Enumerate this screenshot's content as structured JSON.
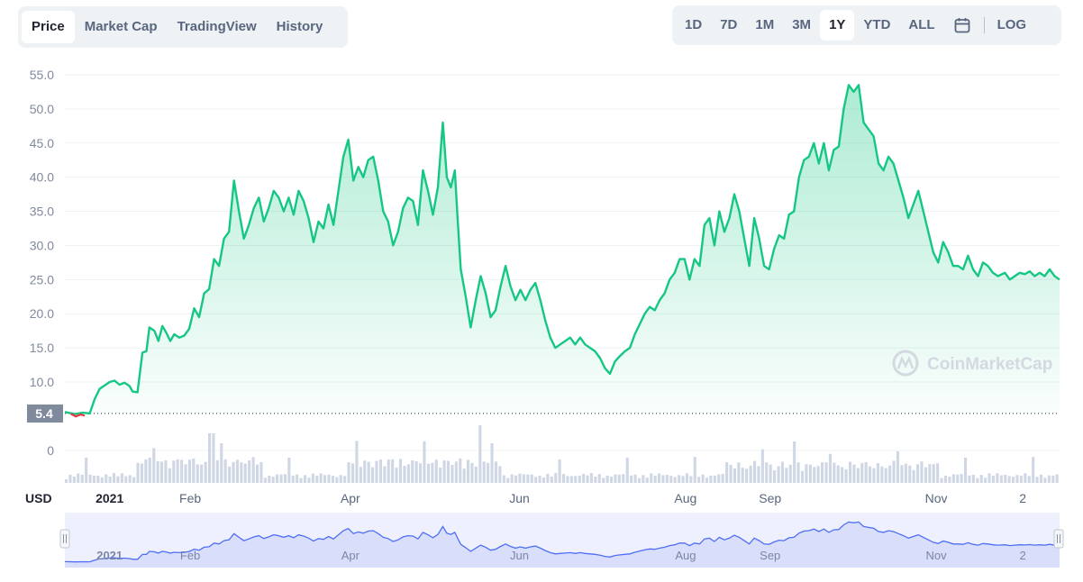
{
  "tabs": [
    "Price",
    "Market Cap",
    "TradingView",
    "History"
  ],
  "active_tab": "Price",
  "ranges": [
    "1D",
    "7D",
    "1M",
    "3M",
    "1Y",
    "YTD",
    "ALL"
  ],
  "active_range": "1Y",
  "calendar_icon": "calendar-icon",
  "log_label": "LOG",
  "watermark": "CoinMarketCap",
  "currency_label": "USD",
  "current_price_label": "5.4",
  "colors": {
    "line": "#16c784",
    "negative": "#ea3943",
    "volume": "#cfd6e4",
    "navigator": "#4f6ef7"
  },
  "chart_data": {
    "type": "area",
    "title": "",
    "xlabel": "",
    "ylabel": "",
    "ylim": [
      0,
      55
    ],
    "y_ticks": [
      "55.0",
      "50.0",
      "45.0",
      "40.0",
      "35.0",
      "30.0",
      "25.0",
      "20.0",
      "15.0",
      "10.0",
      "0"
    ],
    "x_ticks": [
      {
        "label": "2021",
        "t": 0.045,
        "bold": true
      },
      {
        "label": "Feb",
        "t": 0.126,
        "bold": false
      },
      {
        "label": "Apr",
        "t": 0.287,
        "bold": false
      },
      {
        "label": "Jun",
        "t": 0.457,
        "bold": false
      },
      {
        "label": "Aug",
        "t": 0.624,
        "bold": false
      },
      {
        "label": "Sep",
        "t": 0.709,
        "bold": false
      },
      {
        "label": "Nov",
        "t": 0.876,
        "bold": false
      },
      {
        "label": "2",
        "t": 0.963,
        "bold": false
      }
    ],
    "baseline": 5.4,
    "series": [
      {
        "points": [
          [
            0.0,
            5.6
          ],
          [
            0.01,
            5.3
          ],
          [
            0.018,
            5.5
          ],
          [
            0.025,
            5.4
          ],
          [
            0.03,
            7.5
          ],
          [
            0.035,
            9.0
          ],
          [
            0.04,
            9.5
          ],
          [
            0.045,
            10.0
          ],
          [
            0.05,
            10.2
          ],
          [
            0.055,
            9.6
          ],
          [
            0.06,
            9.9
          ],
          [
            0.065,
            9.4
          ],
          [
            0.068,
            8.6
          ],
          [
            0.073,
            8.5
          ],
          [
            0.078,
            14.3
          ],
          [
            0.082,
            14.5
          ],
          [
            0.085,
            18.0
          ],
          [
            0.09,
            17.5
          ],
          [
            0.094,
            16.0
          ],
          [
            0.098,
            18.2
          ],
          [
            0.102,
            17.2
          ],
          [
            0.106,
            16.0
          ],
          [
            0.11,
            17.0
          ],
          [
            0.115,
            16.5
          ],
          [
            0.12,
            16.8
          ],
          [
            0.125,
            17.8
          ],
          [
            0.13,
            20.8
          ],
          [
            0.135,
            19.5
          ],
          [
            0.14,
            23.0
          ],
          [
            0.145,
            23.6
          ],
          [
            0.15,
            28.0
          ],
          [
            0.155,
            27.0
          ],
          [
            0.16,
            31.0
          ],
          [
            0.165,
            32.0
          ],
          [
            0.17,
            39.5
          ],
          [
            0.175,
            35.0
          ],
          [
            0.18,
            31.0
          ],
          [
            0.185,
            33.0
          ],
          [
            0.19,
            35.5
          ],
          [
            0.195,
            37.0
          ],
          [
            0.2,
            33.5
          ],
          [
            0.205,
            35.5
          ],
          [
            0.21,
            38.0
          ],
          [
            0.215,
            37.0
          ],
          [
            0.22,
            35.0
          ],
          [
            0.225,
            37.0
          ],
          [
            0.23,
            34.5
          ],
          [
            0.235,
            38.0
          ],
          [
            0.24,
            36.5
          ],
          [
            0.245,
            34.0
          ],
          [
            0.25,
            30.5
          ],
          [
            0.255,
            33.5
          ],
          [
            0.26,
            32.5
          ],
          [
            0.265,
            36.0
          ],
          [
            0.27,
            33.0
          ],
          [
            0.275,
            38.0
          ],
          [
            0.28,
            43.0
          ],
          [
            0.285,
            45.5
          ],
          [
            0.29,
            39.5
          ],
          [
            0.295,
            41.5
          ],
          [
            0.3,
            40.0
          ],
          [
            0.305,
            42.5
          ],
          [
            0.31,
            43.0
          ],
          [
            0.315,
            39.5
          ],
          [
            0.32,
            35.0
          ],
          [
            0.325,
            33.5
          ],
          [
            0.33,
            30.0
          ],
          [
            0.335,
            32.0
          ],
          [
            0.34,
            35.5
          ],
          [
            0.345,
            37.0
          ],
          [
            0.35,
            36.5
          ],
          [
            0.355,
            33.0
          ],
          [
            0.36,
            41.0
          ],
          [
            0.365,
            38.0
          ],
          [
            0.37,
            34.5
          ],
          [
            0.375,
            38.5
          ],
          [
            0.38,
            48.0
          ],
          [
            0.384,
            40.0
          ],
          [
            0.388,
            38.5
          ],
          [
            0.392,
            41.0
          ],
          [
            0.395,
            33.5
          ],
          [
            0.398,
            26.5
          ],
          [
            0.403,
            22.5
          ],
          [
            0.408,
            18.0
          ],
          [
            0.413,
            22.0
          ],
          [
            0.418,
            25.5
          ],
          [
            0.423,
            23.0
          ],
          [
            0.428,
            19.5
          ],
          [
            0.433,
            20.5
          ],
          [
            0.438,
            24.0
          ],
          [
            0.443,
            27.0
          ],
          [
            0.448,
            24.0
          ],
          [
            0.453,
            22.0
          ],
          [
            0.458,
            23.5
          ],
          [
            0.463,
            22.0
          ],
          [
            0.468,
            23.5
          ],
          [
            0.473,
            24.5
          ],
          [
            0.478,
            22.0
          ],
          [
            0.483,
            19.0
          ],
          [
            0.488,
            16.5
          ],
          [
            0.493,
            15.0
          ],
          [
            0.498,
            15.5
          ],
          [
            0.503,
            16.0
          ],
          [
            0.508,
            16.5
          ],
          [
            0.513,
            15.5
          ],
          [
            0.518,
            16.5
          ],
          [
            0.523,
            15.5
          ],
          [
            0.528,
            15.0
          ],
          [
            0.533,
            14.5
          ],
          [
            0.538,
            13.5
          ],
          [
            0.543,
            12.0
          ],
          [
            0.548,
            11.2
          ],
          [
            0.553,
            13.0
          ],
          [
            0.558,
            13.8
          ],
          [
            0.563,
            14.5
          ],
          [
            0.568,
            15.0
          ],
          [
            0.573,
            17.0
          ],
          [
            0.578,
            18.5
          ],
          [
            0.583,
            20.0
          ],
          [
            0.588,
            21.0
          ],
          [
            0.593,
            20.5
          ],
          [
            0.598,
            22.0
          ],
          [
            0.603,
            23.0
          ],
          [
            0.608,
            25.0
          ],
          [
            0.613,
            26.0
          ],
          [
            0.618,
            28.0
          ],
          [
            0.623,
            28.0
          ],
          [
            0.628,
            25.0
          ],
          [
            0.633,
            28.0
          ],
          [
            0.638,
            27.0
          ],
          [
            0.643,
            33.0
          ],
          [
            0.648,
            34.0
          ],
          [
            0.653,
            30.0
          ],
          [
            0.658,
            35.0
          ],
          [
            0.663,
            32.0
          ],
          [
            0.668,
            34.0
          ],
          [
            0.673,
            37.5
          ],
          [
            0.678,
            35.0
          ],
          [
            0.683,
            31.0
          ],
          [
            0.688,
            27.0
          ],
          [
            0.693,
            34.0
          ],
          [
            0.698,
            31.0
          ],
          [
            0.703,
            27.0
          ],
          [
            0.708,
            26.5
          ],
          [
            0.713,
            29.5
          ],
          [
            0.718,
            31.5
          ],
          [
            0.723,
            31.0
          ],
          [
            0.728,
            34.5
          ],
          [
            0.733,
            35.0
          ],
          [
            0.738,
            40.0
          ],
          [
            0.743,
            42.5
          ],
          [
            0.748,
            43.0
          ],
          [
            0.753,
            45.0
          ],
          [
            0.758,
            42.0
          ],
          [
            0.763,
            45.0
          ],
          [
            0.768,
            41.0
          ],
          [
            0.773,
            44.0
          ],
          [
            0.778,
            44.5
          ],
          [
            0.783,
            50.0
          ],
          [
            0.788,
            53.5
          ],
          [
            0.793,
            52.5
          ],
          [
            0.798,
            53.5
          ],
          [
            0.803,
            48.0
          ],
          [
            0.808,
            47.0
          ],
          [
            0.813,
            46.0
          ],
          [
            0.818,
            42.0
          ],
          [
            0.823,
            41.0
          ],
          [
            0.828,
            43.0
          ],
          [
            0.833,
            42.0
          ],
          [
            0.838,
            39.5
          ],
          [
            0.843,
            37.0
          ],
          [
            0.848,
            34.0
          ],
          [
            0.853,
            36.0
          ],
          [
            0.858,
            38.0
          ],
          [
            0.863,
            35.0
          ],
          [
            0.868,
            32.0
          ],
          [
            0.873,
            29.0
          ],
          [
            0.878,
            27.5
          ],
          [
            0.883,
            30.5
          ],
          [
            0.888,
            29.0
          ],
          [
            0.893,
            27.0
          ],
          [
            0.898,
            27.0
          ],
          [
            0.903,
            26.5
          ],
          [
            0.908,
            28.5
          ],
          [
            0.913,
            26.5
          ],
          [
            0.918,
            25.5
          ],
          [
            0.923,
            27.5
          ],
          [
            0.928,
            27.0
          ],
          [
            0.933,
            26.0
          ],
          [
            0.938,
            25.5
          ],
          [
            0.945,
            26.0
          ],
          [
            0.95,
            25.0
          ],
          [
            0.955,
            25.5
          ],
          [
            0.96,
            26.0
          ],
          [
            0.965,
            25.8
          ],
          [
            0.97,
            26.2
          ],
          [
            0.975,
            25.5
          ],
          [
            0.98,
            26.0
          ],
          [
            0.985,
            25.5
          ],
          [
            0.99,
            26.5
          ],
          [
            0.995,
            25.5
          ],
          [
            1.0,
            25.0
          ]
        ]
      }
    ]
  }
}
